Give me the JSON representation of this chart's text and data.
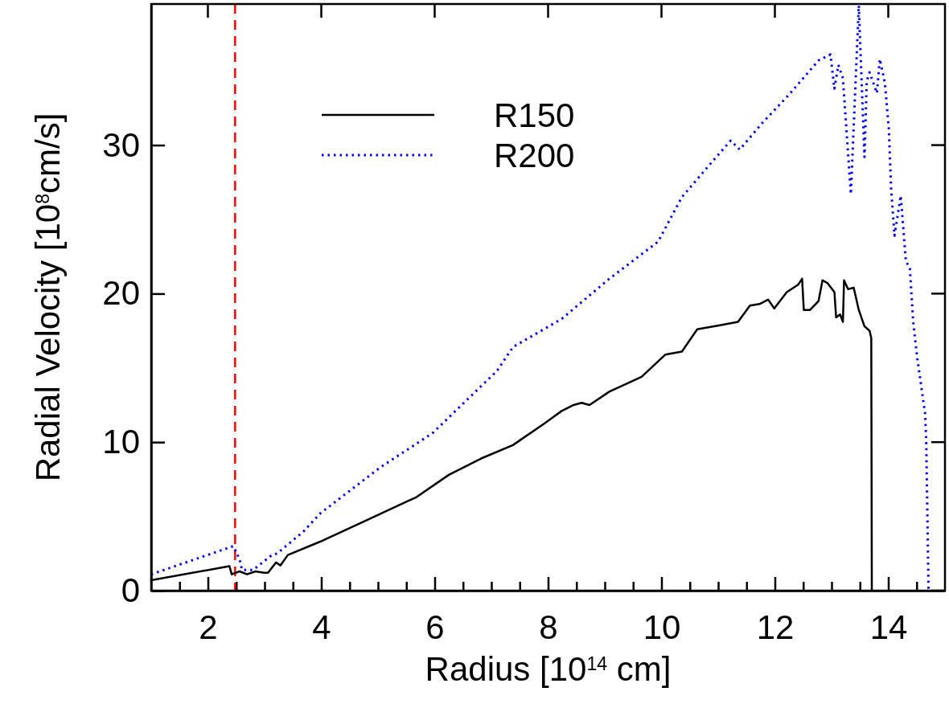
{
  "chart_data": {
    "type": "line",
    "xlabel": "Radius [10$^{14}$ cm]",
    "ylabel": "Radial Velocity [10$^{8}$cm/s]",
    "xlim": [
      1,
      15
    ],
    "ylim": [
      0,
      39.5
    ],
    "xticks": [
      {
        "value": 1.5,
        "label": null
      },
      2,
      {
        "value": 2.5,
        "label": null
      },
      {
        "value": 3,
        "label": null
      },
      {
        "value": 3.5,
        "label": null
      },
      4,
      {
        "value": 4.5,
        "label": null
      },
      {
        "value": 5,
        "label": null
      },
      {
        "value": 5.5,
        "label": null
      },
      6,
      {
        "value": 6.5,
        "label": null
      },
      {
        "value": 7,
        "label": null
      },
      {
        "value": 7.5,
        "label": null
      },
      8,
      {
        "value": 8.5,
        "label": null
      },
      {
        "value": 9,
        "label": null
      },
      {
        "value": 9.5,
        "label": null
      },
      10,
      {
        "value": 10.5,
        "label": null
      },
      {
        "value": 11,
        "label": null
      },
      {
        "value": 11.5,
        "label": null
      },
      12,
      {
        "value": 12.5,
        "label": null
      },
      {
        "value": 13,
        "label": null
      },
      {
        "value": 13.5,
        "label": null
      },
      14,
      {
        "value": 14.5,
        "label": null
      }
    ],
    "yticks": [
      0,
      10,
      20,
      30
    ],
    "grid": false,
    "legend": "top left",
    "ref_lines": [
      {
        "axis": "x",
        "value": 2.48,
        "color": "#ff0000",
        "line_style": "dashed"
      }
    ],
    "series": [
      {
        "name": "R150",
        "color": "#000000",
        "line_style": "solid",
        "x": [
          1.0,
          2.38,
          2.42,
          2.56,
          2.69,
          2.84,
          2.99,
          3.06,
          3.2,
          3.28,
          3.41,
          3.98,
          4.83,
          5.68,
          6.25,
          6.82,
          7.38,
          7.95,
          8.24,
          8.45,
          8.59,
          8.73,
          9.08,
          9.65,
          10.07,
          10.36,
          10.63,
          11.07,
          11.35,
          11.56,
          11.73,
          11.88,
          11.99,
          12.21,
          12.41,
          12.48,
          12.51,
          12.62,
          12.77,
          12.84,
          12.93,
          13.05,
          13.08,
          13.15,
          13.2,
          13.22,
          13.29,
          13.39,
          13.48,
          13.58,
          13.67,
          13.7,
          13.71
        ],
        "values": [
          0.7,
          1.65,
          1.1,
          1.3,
          1.1,
          1.3,
          1.2,
          1.2,
          1.9,
          1.7,
          2.4,
          3.3,
          4.8,
          6.3,
          7.8,
          8.9,
          9.8,
          11.3,
          12.1,
          12.5,
          12.65,
          12.5,
          13.4,
          14.4,
          15.9,
          16.1,
          17.6,
          17.9,
          18.1,
          19.2,
          19.3,
          19.6,
          19.0,
          20.1,
          20.6,
          21.0,
          18.9,
          18.9,
          19.5,
          20.9,
          20.7,
          20.1,
          18.4,
          18.6,
          18.1,
          20.9,
          20.3,
          20.4,
          18.9,
          17.8,
          17.5,
          17.0,
          0
        ]
      },
      {
        "name": "R200",
        "color": "#0000ff",
        "line_style": "dotted",
        "x": [
          1.0,
          2.45,
          2.56,
          2.6,
          2.8,
          3.13,
          3.22,
          3.69,
          3.98,
          5.04,
          5.96,
          7.1,
          7.38,
          8.24,
          9.08,
          9.94,
          10.36,
          10.83,
          11.22,
          11.38,
          11.78,
          12.25,
          12.77,
          12.98,
          13.05,
          13.12,
          13.2,
          13.34,
          13.48,
          13.58,
          13.62,
          13.67,
          13.8,
          13.85,
          13.94,
          14.01,
          14.05,
          14.11,
          14.22,
          14.31,
          14.38,
          14.44,
          14.51,
          14.65,
          14.67,
          14.71
        ],
        "values": [
          1.1,
          3.0,
          2.1,
          1.4,
          1.4,
          2.4,
          2.5,
          4.0,
          5.2,
          8.3,
          10.6,
          14.8,
          16.4,
          18.3,
          21.0,
          23.5,
          26.5,
          28.6,
          30.3,
          29.7,
          31.5,
          33.4,
          35.7,
          36.1,
          33.8,
          35.4,
          34.5,
          26.7,
          39.4,
          29.2,
          34.3,
          34.9,
          33.5,
          35.8,
          34.2,
          31.1,
          27.1,
          23.9,
          26.6,
          22.2,
          21.7,
          18.1,
          15.7,
          11.9,
          9.9,
          0
        ]
      }
    ]
  }
}
